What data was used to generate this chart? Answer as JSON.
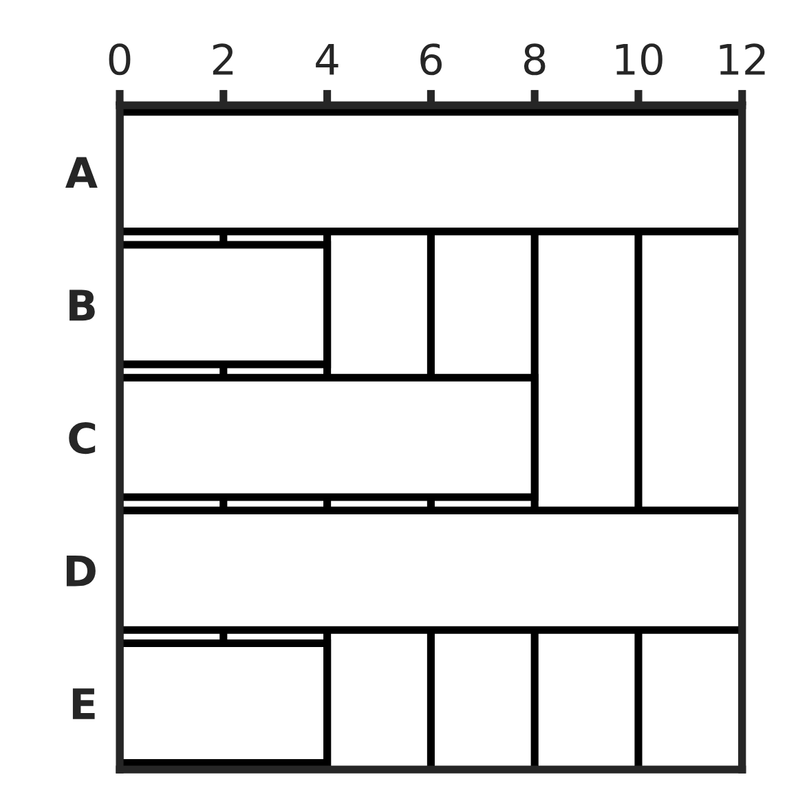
{
  "chart_data": {
    "type": "bar",
    "orientation": "horizontal",
    "categories": [
      "A",
      "B",
      "C",
      "D",
      "E"
    ],
    "values": [
      12,
      4,
      8,
      12,
      4
    ],
    "color": "#ffffff",
    "xlim": [
      0,
      12
    ],
    "xticks": [
      0,
      2,
      4,
      6,
      8,
      10,
      12
    ],
    "grid": "x"
  }
}
